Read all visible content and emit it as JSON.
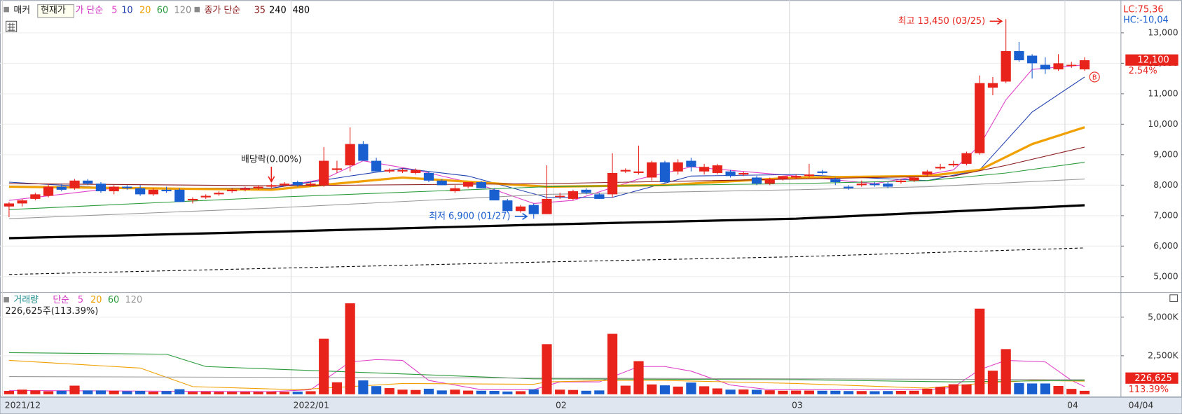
{
  "chart_data": [
    {
      "type": "candlestick",
      "name": "매커",
      "tooltip": "현재가",
      "ma_label": "가 단순",
      "long_ma_label": "종가 단순",
      "lc_label": "LC:75,36",
      "hc_label": "HC:-10,04",
      "xlim": [
        -0.69,
        84.77
      ],
      "xticks": [
        {
          "value": 0,
          "label": "2021/12"
        },
        {
          "value": 22,
          "label": "2022/01"
        },
        {
          "value": 42,
          "label": "02"
        },
        {
          "value": 60,
          "label": "03"
        },
        {
          "value": 81,
          "label": "04"
        }
      ],
      "date_label": "04/04",
      "ylim": [
        4550,
        13950
      ],
      "yticks": [
        {
          "value": 5000,
          "label": "5,000"
        },
        {
          "value": 6000,
          "label": "6,000"
        },
        {
          "value": 7000,
          "label": "7,000"
        },
        {
          "value": 8000,
          "label": "8,000"
        },
        {
          "value": 9000,
          "label": "9,000"
        },
        {
          "value": 10000,
          "label": "10,000"
        },
        {
          "value": 11000,
          "label": "11,000"
        },
        {
          "value": 12000,
          "label": "12,000"
        },
        {
          "value": 13000,
          "label": "13,000"
        }
      ],
      "grid": true,
      "up_color": "#e8231b",
      "down_color": "#1a5fd0",
      "ohlc": [
        [
          7300,
          7450,
          6950,
          7400
        ],
        [
          7400,
          7550,
          7300,
          7500
        ],
        [
          7550,
          7750,
          7500,
          7700
        ],
        [
          7650,
          8050,
          7600,
          7950
        ],
        [
          7950,
          8050,
          7800,
          7850
        ],
        [
          7900,
          8200,
          7850,
          8150
        ],
        [
          8150,
          8200,
          8000,
          8050
        ],
        [
          8050,
          8100,
          7750,
          7800
        ],
        [
          7800,
          8000,
          7700,
          7950
        ],
        [
          7950,
          8000,
          7850,
          7900
        ],
        [
          7900,
          8000,
          7650,
          7700
        ],
        [
          7700,
          7900,
          7650,
          7850
        ],
        [
          7850,
          7950,
          7750,
          7800
        ],
        [
          7850,
          7900,
          7450,
          7450
        ],
        [
          7500,
          7600,
          7400,
          7550
        ],
        [
          7600,
          7700,
          7550,
          7650
        ],
        [
          7700,
          7800,
          7650,
          7750
        ],
        [
          7800,
          7900,
          7750,
          7850
        ],
        [
          7850,
          7950,
          7800,
          7900
        ],
        [
          7900,
          8000,
          7850,
          7950
        ],
        [
          7950,
          8050,
          7900,
          8000
        ],
        [
          8000,
          8100,
          7950,
          8050
        ],
        [
          8100,
          8150,
          7950,
          8000
        ],
        [
          8000,
          8100,
          7950,
          8050
        ],
        [
          8000,
          9250,
          7950,
          8800
        ],
        [
          8500,
          8800,
          8400,
          8550
        ],
        [
          8650,
          9900,
          8450,
          9350
        ],
        [
          9350,
          9450,
          8800,
          8800
        ],
        [
          8800,
          8900,
          8450,
          8450
        ],
        [
          8450,
          8550,
          8400,
          8500
        ],
        [
          8450,
          8550,
          8400,
          8500
        ],
        [
          8400,
          8550,
          8350,
          8500
        ],
        [
          8400,
          8450,
          8100,
          8150
        ],
        [
          8150,
          8200,
          8000,
          8000
        ],
        [
          7800,
          8000,
          7750,
          7900
        ],
        [
          7950,
          8100,
          7900,
          8100
        ],
        [
          8100,
          8150,
          7900,
          7900
        ],
        [
          7850,
          7900,
          7500,
          7500
        ],
        [
          7500,
          7550,
          7100,
          7150
        ],
        [
          7150,
          7350,
          7100,
          7300
        ],
        [
          7350,
          7400,
          6900,
          7050
        ],
        [
          7050,
          8650,
          7050,
          7550
        ],
        [
          7650,
          7750,
          7550,
          7650
        ],
        [
          7550,
          7850,
          7500,
          7800
        ],
        [
          7850,
          7900,
          7700,
          7750
        ],
        [
          7700,
          7750,
          7550,
          7550
        ],
        [
          7700,
          9050,
          7600,
          8400
        ],
        [
          8450,
          8550,
          8400,
          8500
        ],
        [
          8400,
          9300,
          8350,
          8450
        ],
        [
          8250,
          8800,
          8150,
          8750
        ],
        [
          8750,
          8800,
          8050,
          8100
        ],
        [
          8450,
          8850,
          8350,
          8750
        ],
        [
          8800,
          8900,
          8450,
          8600
        ],
        [
          8450,
          8700,
          8350,
          8600
        ],
        [
          8400,
          8700,
          8350,
          8650
        ],
        [
          8450,
          8500,
          8250,
          8300
        ],
        [
          8350,
          8450,
          8300,
          8400
        ],
        [
          8250,
          8300,
          8000,
          8050
        ],
        [
          8050,
          8250,
          8000,
          8200
        ],
        [
          8200,
          8300,
          8150,
          8300
        ],
        [
          8250,
          8350,
          8200,
          8300
        ],
        [
          8300,
          8700,
          8250,
          8350
        ],
        [
          8450,
          8500,
          8350,
          8400
        ],
        [
          8200,
          8250,
          8000,
          8100
        ],
        [
          7950,
          8000,
          7850,
          7900
        ],
        [
          8000,
          8150,
          7950,
          8050
        ],
        [
          8050,
          8100,
          7950,
          8000
        ],
        [
          8050,
          8100,
          7900,
          7950
        ],
        [
          8100,
          8200,
          8050,
          8150
        ],
        [
          8150,
          8300,
          8100,
          8250
        ],
        [
          8350,
          8500,
          8300,
          8450
        ],
        [
          8550,
          8700,
          8500,
          8600
        ],
        [
          8650,
          8800,
          8600,
          8700
        ],
        [
          8700,
          9100,
          8650,
          9050
        ],
        [
          9050,
          11600,
          9000,
          11350
        ],
        [
          11200,
          11550,
          10950,
          11350
        ],
        [
          11400,
          13450,
          11350,
          12400
        ],
        [
          12400,
          12700,
          12050,
          12100
        ],
        [
          12250,
          12300,
          11500,
          12000
        ],
        [
          11950,
          12200,
          11650,
          11800
        ],
        [
          11800,
          12300,
          11750,
          12000
        ],
        [
          11950,
          12050,
          11850,
          11950
        ],
        [
          11800,
          12200,
          11750,
          12100
        ]
      ],
      "last_price": {
        "value": 12100,
        "label": "12,100"
      },
      "change": {
        "value": 2.54,
        "label": "2.54%"
      },
      "high_note": "최고 13,450 (03/25)",
      "low_note": "최저 6,900 (01/27)",
      "ex_dividend_note": "배당락(0.00%)",
      "signal": "B",
      "series": [
        {
          "name": "5",
          "color": "#e040c8",
          "width": 1,
          "x": [
            0,
            8,
            20,
            24,
            27,
            31,
            36,
            40,
            43,
            48,
            52,
            60,
            66,
            72,
            74,
            76,
            78,
            82
          ],
          "values": [
            7500,
            7900,
            7900,
            8200,
            8800,
            8500,
            8000,
            7400,
            7500,
            8200,
            8600,
            8300,
            8050,
            8500,
            9300,
            10800,
            11800,
            11950
          ]
        },
        {
          "name": "10",
          "color": "#2040b0",
          "width": 1,
          "x": [
            0,
            8,
            20,
            26,
            30,
            35,
            41,
            46,
            52,
            60,
            70,
            74,
            78,
            82
          ],
          "values": [
            8100,
            7900,
            7900,
            8300,
            8550,
            8300,
            7600,
            7600,
            8300,
            8350,
            8150,
            8500,
            10400,
            11550
          ]
        },
        {
          "name": "20",
          "color": "#f0a000",
          "width": 3,
          "x": [
            0,
            10,
            20,
            30,
            41,
            50,
            60,
            70,
            74,
            78,
            82
          ],
          "values": [
            7950,
            7900,
            7850,
            8250,
            7950,
            8000,
            8250,
            8300,
            8500,
            9350,
            9900
          ]
        },
        {
          "name": "60",
          "color": "#2a9a3a",
          "width": 1,
          "x": [
            0,
            20,
            41,
            60,
            70,
            76,
            82
          ],
          "values": [
            7200,
            7600,
            7950,
            8050,
            8150,
            8400,
            8750
          ]
        },
        {
          "name": "120",
          "color": "#999999",
          "width": 1,
          "x": [
            0,
            20,
            41,
            60,
            70,
            82
          ],
          "values": [
            6900,
            7250,
            7700,
            7850,
            7950,
            8200
          ]
        },
        {
          "name": "35",
          "color": "#8b1a1a",
          "width": 1,
          "x": [
            0,
            20,
            41,
            60,
            72,
            76,
            82
          ],
          "values": [
            8050,
            7980,
            8050,
            8200,
            8300,
            8650,
            9250
          ]
        },
        {
          "name": "240",
          "color": "#000000",
          "width": 3,
          "x": [
            0,
            20,
            41,
            60,
            74,
            82
          ],
          "values": [
            6260,
            6470,
            6710,
            6900,
            7180,
            7340
          ]
        },
        {
          "name": "480",
          "color": "#000000",
          "width": 1,
          "dash": true,
          "x": [
            0,
            41,
            60,
            82
          ],
          "values": [
            5070,
            5480,
            5650,
            5940
          ]
        }
      ]
    },
    {
      "type": "bar",
      "title": "거래량",
      "ma_label": "단순",
      "current_text": "226,625주(113.39%)",
      "xlim": [
        -0.69,
        84.77
      ],
      "ylim": [
        0,
        6500
      ],
      "yticks": [
        {
          "value": 2500,
          "label": "2,500K"
        },
        {
          "value": 5000,
          "label": "5,000K"
        }
      ],
      "values": [
        220,
        300,
        250,
        200,
        230,
        560,
        250,
        250,
        230,
        200,
        220,
        170,
        210,
        330,
        160,
        170,
        160,
        160,
        160,
        160,
        170,
        160,
        170,
        200,
        3600,
        780,
        5900,
        900,
        530,
        400,
        300,
        280,
        360,
        250,
        300,
        240,
        230,
        220,
        180,
        200,
        320,
        3250,
        300,
        280,
        230,
        250,
        3920,
        560,
        2150,
        640,
        580,
        500,
        760,
        520,
        380,
        300,
        310,
        290,
        260,
        230,
        240,
        240,
        230,
        230,
        210,
        210,
        200,
        210,
        220,
        230,
        360,
        480,
        650,
        640,
        5550,
        1530,
        2930,
        730,
        700,
        700,
        540,
        350,
        226.625
      ],
      "last_volume": {
        "value": 226.625,
        "label": "226,625"
      },
      "ratio": {
        "value": 113.39,
        "label": "113.39%"
      },
      "series": [
        {
          "name": "5",
          "color": "#e040c8",
          "x": [
            0,
            20,
            23,
            26,
            28,
            30,
            32,
            36,
            40,
            42,
            45,
            48,
            50,
            52,
            55,
            58,
            70,
            72,
            74,
            76,
            79,
            81,
            82
          ],
          "values": [
            250,
            170,
            300,
            2100,
            2250,
            2200,
            900,
            300,
            300,
            800,
            800,
            1800,
            1800,
            1500,
            600,
            300,
            300,
            450,
            1600,
            2200,
            2100,
            900,
            500
          ]
        },
        {
          "name": "20",
          "color": "#f0a000",
          "x": [
            0,
            10,
            14,
            22,
            26,
            30,
            40,
            41,
            46,
            50,
            60,
            70,
            74,
            78,
            82
          ],
          "values": [
            2200,
            1700,
            500,
            300,
            500,
            700,
            650,
            800,
            900,
            900,
            700,
            400,
            700,
            900,
            850
          ]
        },
        {
          "name": "60",
          "color": "#2a9a3a",
          "x": [
            0,
            12,
            15,
            40,
            60,
            72,
            76,
            82
          ],
          "values": [
            2700,
            2600,
            1800,
            1000,
            950,
            800,
            850,
            900
          ]
        },
        {
          "name": "120",
          "color": "#999999",
          "x": [
            0,
            40,
            82
          ],
          "values": [
            1150,
            1050,
            950
          ]
        }
      ]
    }
  ]
}
